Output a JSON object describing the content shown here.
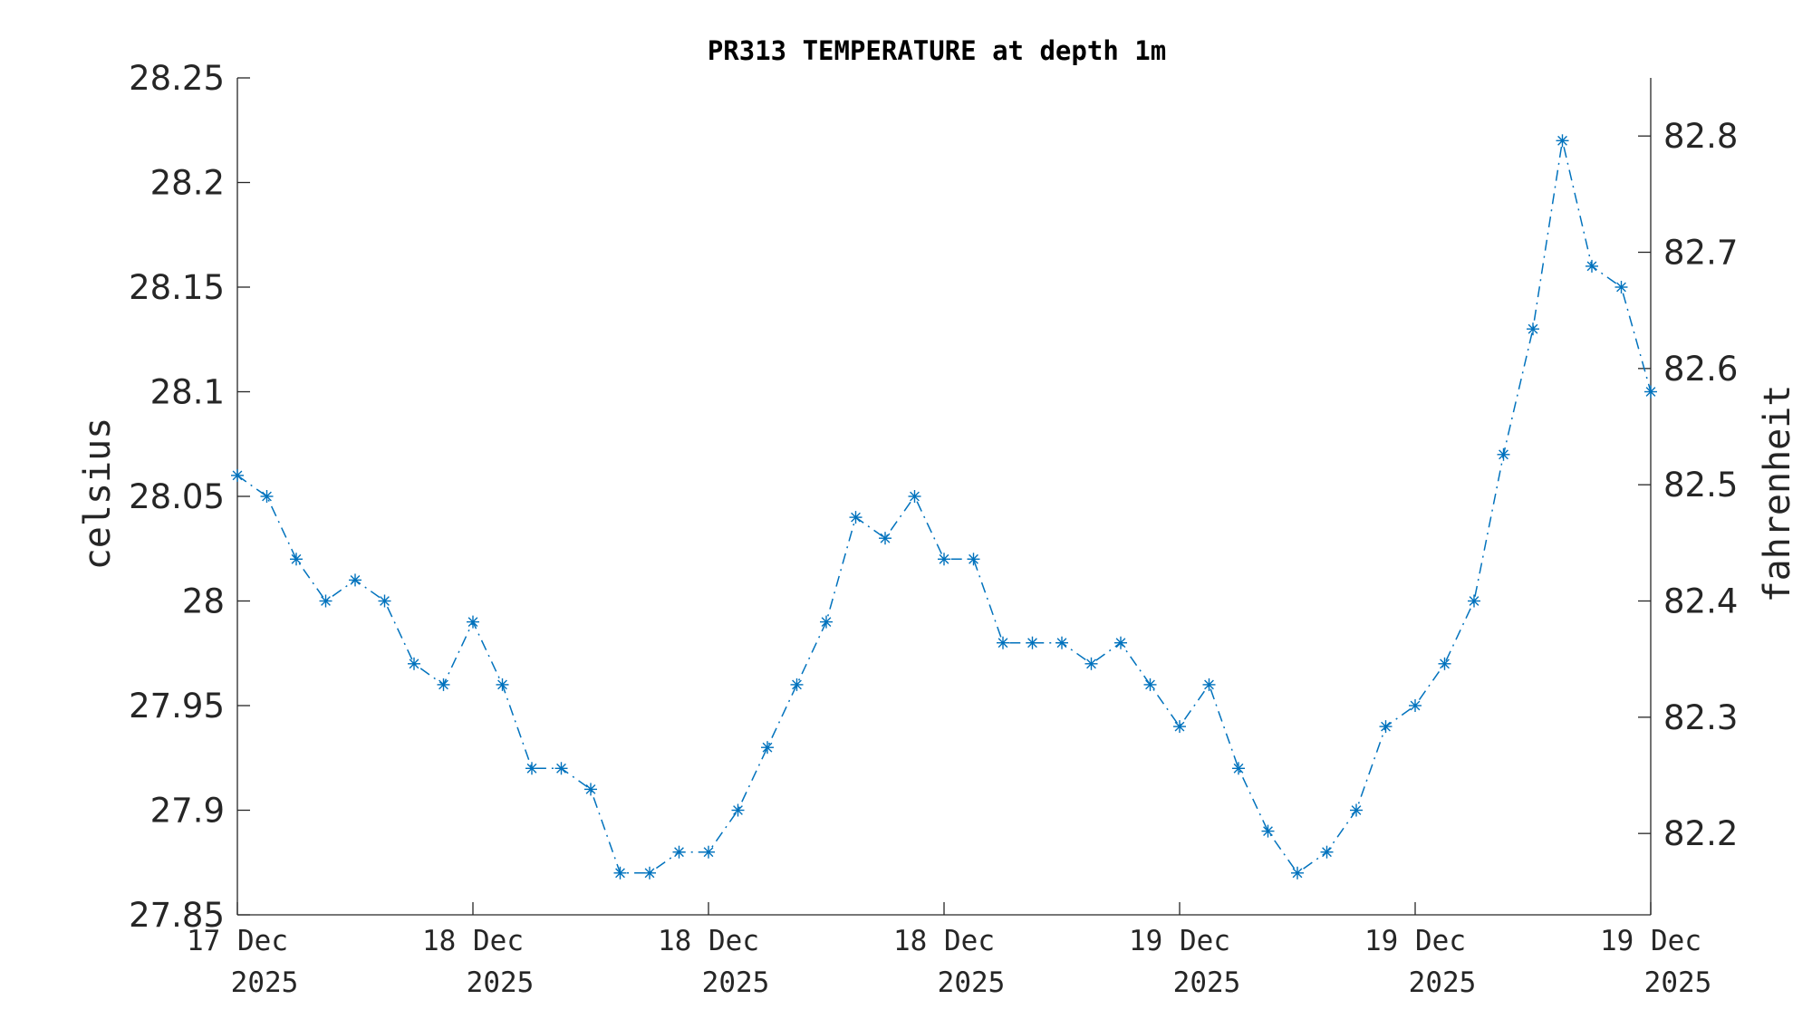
{
  "chart_data": {
    "type": "line",
    "title": "PR313 TEMPERATURE at depth 1m",
    "ylabel": "celsius",
    "ylabel_right": "fahrenheit",
    "ylim": [
      27.85,
      28.25
    ],
    "ylim_right": [
      82.13,
      82.85
    ],
    "y_ticks": [
      "28.25",
      "28.2",
      "28.15",
      "28.1",
      "28.05",
      "28",
      "27.95",
      "27.9",
      "27.85"
    ],
    "y_ticks_right": [
      "82.8",
      "82.7",
      "82.6",
      "82.5",
      "82.4",
      "82.3",
      "82.2"
    ],
    "x_ticks": [
      {
        "line1": "17 Dec",
        "line2": "2025"
      },
      {
        "line1": "18 Dec",
        "line2": "2025"
      },
      {
        "line1": "18 Dec",
        "line2": "2025"
      },
      {
        "line1": "18 Dec",
        "line2": "2025"
      },
      {
        "line1": "19 Dec",
        "line2": "2025"
      },
      {
        "line1": "19 Dec",
        "line2": "2025"
      },
      {
        "line1": "19 Dec",
        "line2": "2025"
      }
    ],
    "grid": false,
    "color": "#0072BD",
    "marker": "asterisk",
    "line_style": "dash-dot",
    "series": [
      {
        "values": [
          28.06,
          28.05,
          28.02,
          28.0,
          28.01,
          28.0,
          27.97,
          27.96,
          27.99,
          27.96,
          27.92,
          27.92,
          27.91,
          27.87,
          27.87,
          27.88,
          27.88,
          27.9,
          27.93,
          27.96,
          27.99,
          28.04,
          28.03,
          28.05,
          28.02,
          28.02,
          27.98,
          27.98,
          27.98,
          27.97,
          27.98,
          27.96,
          27.94,
          27.96,
          27.92,
          27.89,
          27.87,
          27.88,
          27.9,
          27.94,
          27.95,
          27.97,
          28.0,
          28.07,
          28.13,
          28.22,
          28.16,
          28.15,
          28.1
        ]
      }
    ]
  }
}
